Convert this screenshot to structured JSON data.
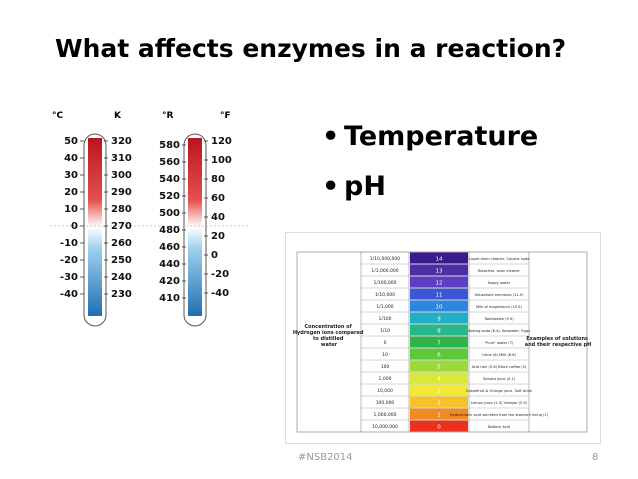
{
  "slide": {
    "title": "What affects enzymes in a reaction?",
    "bullets": [
      "Temperature",
      "pH"
    ],
    "footer": "#NSB2014",
    "page_number": "8"
  },
  "thermometers": {
    "left": {
      "unit_a": "°C",
      "unit_b": "K",
      "celsius_ticks": [
        "50",
        "40",
        "30",
        "20",
        "10",
        "0",
        "-10",
        "-20",
        "-30",
        "-40"
      ],
      "kelvin_ticks": [
        "320",
        "310",
        "300",
        "290",
        "280",
        "270",
        "260",
        "250",
        "240",
        "230"
      ]
    },
    "right": {
      "unit_a": "°R",
      "unit_b": "°F",
      "rankine_ticks": [
        "580",
        "560",
        "540",
        "520",
        "500",
        "480",
        "460",
        "440",
        "420",
        "410"
      ],
      "fahrenheit_ticks": [
        "120",
        "100",
        "80",
        "60",
        "40",
        "20",
        "0",
        "-20",
        "-40"
      ]
    }
  },
  "ph_table": {
    "row_label": "Concentration of Hydrogen ions compared to distilled water",
    "right_label": "Examples of solutions and their respective pH",
    "rows": [
      {
        "conc": "1/10,000,000",
        "ph": "14",
        "color": "#3a1a8c",
        "example": "Liquid drain cleaner, Caustic soda"
      },
      {
        "conc": "1/1,000,000",
        "ph": "13",
        "color": "#4b2ea8",
        "example": "Bleaches, oven cleaner"
      },
      {
        "conc": "1/100,000",
        "ph": "12",
        "color": "#5b3fc0",
        "example": "Soapy water"
      },
      {
        "conc": "1/10,000",
        "ph": "11",
        "color": "#3c56d6",
        "example": "Household ammonia (11.9)"
      },
      {
        "conc": "1/1,000",
        "ph": "10",
        "color": "#2f86e0",
        "example": "Milk of magnesium (10.5)"
      },
      {
        "conc": "1/100",
        "ph": "9",
        "color": "#1fb0c8",
        "example": "Toothpaste (9.9)"
      },
      {
        "conc": "1/10",
        "ph": "8",
        "color": "#27b88a",
        "example": "Baking soda (8.4), Seawater, Eggs"
      },
      {
        "conc": "0",
        "ph": "7",
        "color": "#2fb44a",
        "example": "\"Pure\" water (7)"
      },
      {
        "conc": "10",
        "ph": "6",
        "color": "#5cc83a",
        "example": "Urine (6) Milk (6.6)"
      },
      {
        "conc": "100",
        "ph": "5",
        "color": "#9bd83a",
        "example": "Acid rain (5.6) Black coffee (5)"
      },
      {
        "conc": "1,000",
        "ph": "4",
        "color": "#d8e83a",
        "example": "Tomato juice (4.1)"
      },
      {
        "conc": "10,000",
        "ph": "3",
        "color": "#f2ea30",
        "example": "Grapefruit & Orange juice, Soft drink"
      },
      {
        "conc": "100,000",
        "ph": "2",
        "color": "#f6c22a",
        "example": "Lemon juice (2.3) Vinegar (2.9)"
      },
      {
        "conc": "1,000,000",
        "ph": "1",
        "color": "#f28a22",
        "example": "Hydrochloric acid secreted from the stomach lining (1)"
      },
      {
        "conc": "10,000,000",
        "ph": "0",
        "color": "#e8321e",
        "example": "Battery Acid"
      }
    ]
  }
}
